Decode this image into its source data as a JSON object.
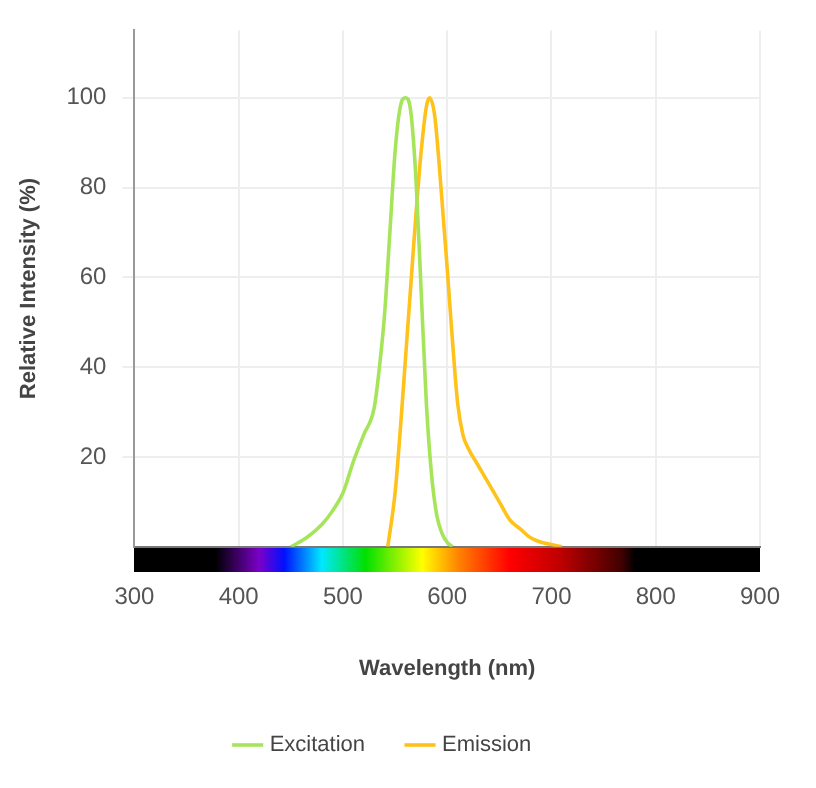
{
  "chart_data": {
    "type": "line",
    "xlabel": "Wavelength (nm)",
    "ylabel": "Relative Intensity (%)",
    "xlim": [
      300,
      900
    ],
    "ylim": [
      0,
      115
    ],
    "xticks": [
      300,
      400,
      500,
      600,
      700,
      800,
      900
    ],
    "yticks": [
      20,
      40,
      60,
      80,
      100
    ],
    "grid": true,
    "legend": "bottom",
    "marker": "none",
    "line_style": "solid",
    "series": [
      {
        "name": "Excitation",
        "color": "#a6e55a",
        "x": [
          450,
          465,
          480,
          490,
          500,
          510,
          520,
          530,
          535,
          540,
          545,
          550,
          555,
          560,
          565,
          570,
          575,
          580,
          585,
          590,
          595,
          600,
          605
        ],
        "values": [
          0,
          2,
          5,
          8,
          12,
          19,
          25,
          31,
          40,
          52,
          70,
          88,
          98,
          100,
          97,
          82,
          57,
          32,
          16,
          7,
          3,
          1,
          0
        ]
      },
      {
        "name": "Emission",
        "color": "#ffc21a",
        "x": [
          543,
          550,
          555,
          560,
          565,
          570,
          575,
          580,
          583,
          588,
          592,
          596,
          600,
          605,
          610,
          615,
          620,
          630,
          640,
          650,
          660,
          670,
          680,
          690,
          700,
          710
        ],
        "values": [
          0,
          12,
          26,
          42,
          58,
          74,
          88,
          98,
          100,
          96,
          86,
          74,
          62,
          46,
          32,
          25,
          22,
          18,
          14,
          10,
          6,
          4,
          2,
          1,
          0.5,
          0
        ]
      }
    ]
  }
}
